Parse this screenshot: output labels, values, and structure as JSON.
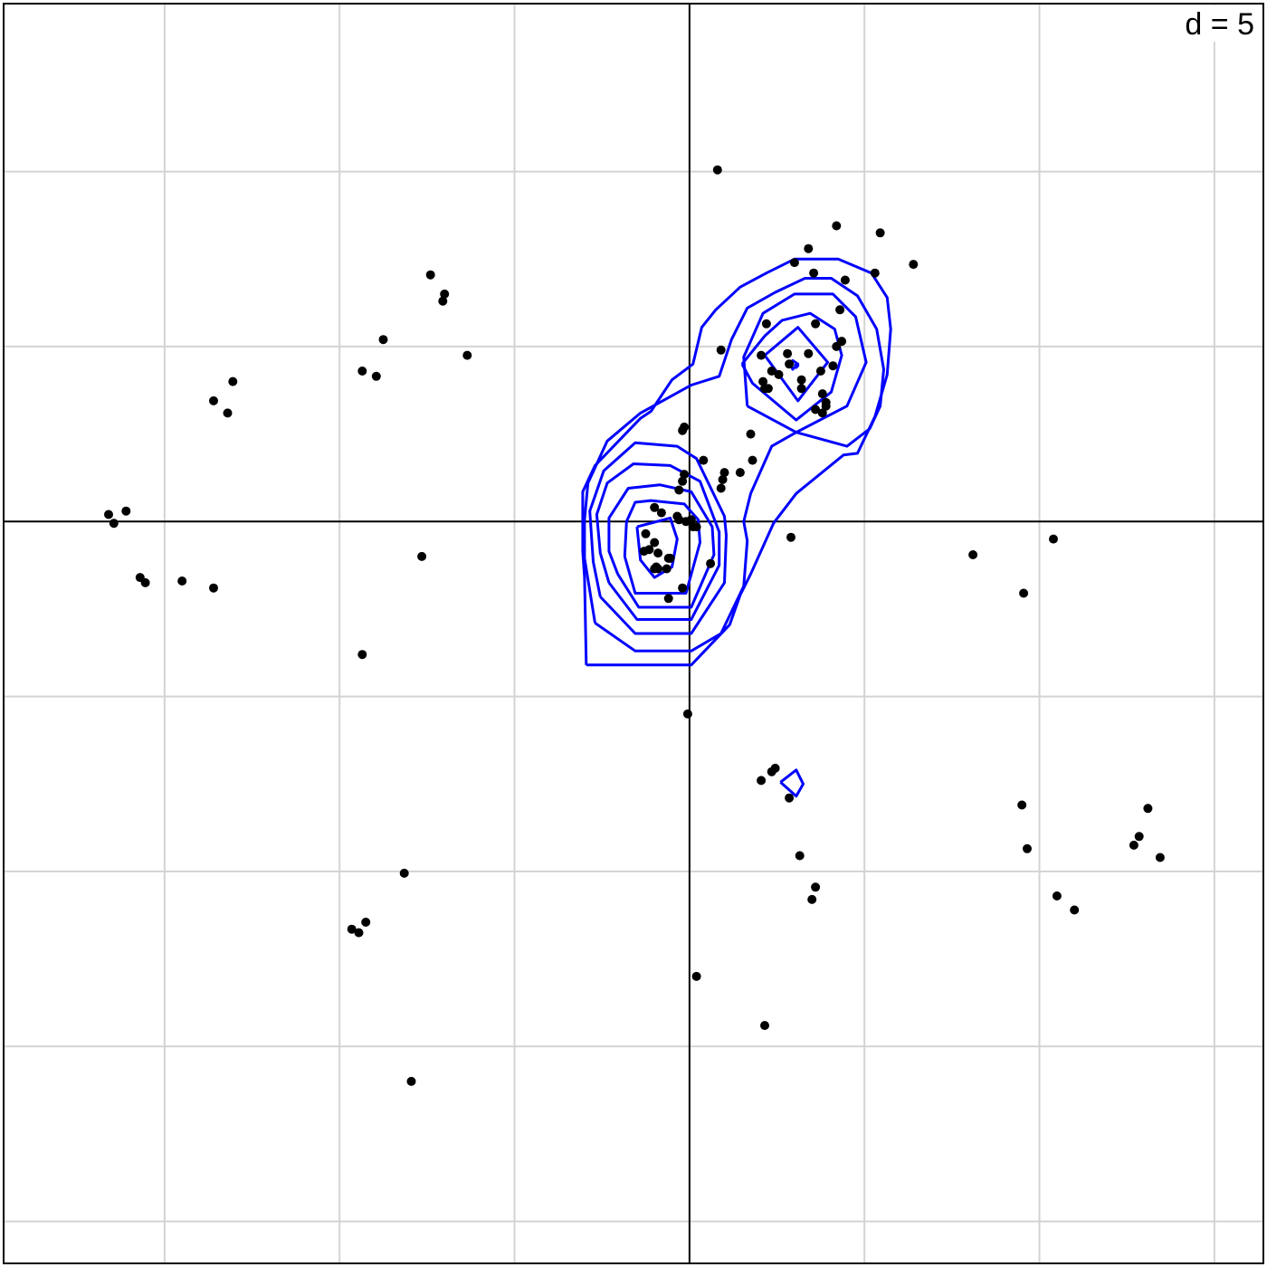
{
  "chart_data": {
    "type": "scatter",
    "title": "",
    "xlabel": "",
    "ylabel": "",
    "grid_label": "d = 5",
    "grid_step": 5,
    "xlim": [
      -19.6,
      16.4
    ],
    "ylim": [
      -21.2,
      14.8
    ],
    "grid": true,
    "axes_through_origin": true,
    "colors": {
      "points": "#000000",
      "contours": "#0000ff",
      "grid": "#d3d3d3",
      "axes": "#000000"
    },
    "points": [
      [
        0.8,
        10.05
      ],
      [
        4.2,
        8.45
      ],
      [
        5.45,
        8.25
      ],
      [
        5.3,
        7.1
      ],
      [
        6.4,
        7.35
      ],
      [
        3.4,
        7.8
      ],
      [
        3.55,
        7.1
      ],
      [
        3.0,
        7.4
      ],
      [
        4.45,
        6.9
      ],
      [
        4.3,
        6.05
      ],
      [
        3.6,
        5.65
      ],
      [
        2.85,
        4.5
      ],
      [
        2.2,
        5.65
      ],
      [
        2.05,
        4.75
      ],
      [
        2.8,
        4.8
      ],
      [
        4.1,
        4.45
      ],
      [
        3.4,
        4.8
      ],
      [
        2.35,
        4.3
      ],
      [
        2.55,
        4.2
      ],
      [
        3.2,
        4.05
      ],
      [
        2.1,
        4.0
      ],
      [
        3.75,
        4.3
      ],
      [
        4.2,
        5.0
      ],
      [
        4.35,
        5.15
      ],
      [
        3.2,
        3.8
      ],
      [
        2.25,
        3.8
      ],
      [
        2.15,
        3.8
      ],
      [
        0.9,
        4.9
      ],
      [
        3.8,
        3.65
      ],
      [
        3.9,
        3.4
      ],
      [
        3.6,
        3.2
      ],
      [
        3.9,
        3.3
      ],
      [
        3.8,
        3.1
      ],
      [
        1.75,
        2.5
      ],
      [
        1.8,
        1.75
      ],
      [
        -0.15,
        2.7
      ],
      [
        -0.2,
        2.6
      ],
      [
        0.4,
        1.75
      ],
      [
        1.45,
        1.4
      ],
      [
        1.0,
        1.4
      ],
      [
        0.95,
        1.2
      ],
      [
        0.9,
        0.95
      ],
      [
        -0.15,
        1.35
      ],
      [
        -0.2,
        1.15
      ],
      [
        -0.3,
        0.9
      ],
      [
        -1.0,
        0.4
      ],
      [
        -0.8,
        0.25
      ],
      [
        -0.35,
        0.15
      ],
      [
        -0.3,
        0.05
      ],
      [
        0.05,
        0.05
      ],
      [
        0.1,
        -0.15
      ],
      [
        -0.1,
        0.0
      ],
      [
        0.2,
        -0.15
      ],
      [
        -1.25,
        -0.35
      ],
      [
        -1.0,
        -0.6
      ],
      [
        -1.3,
        -0.85
      ],
      [
        -1.15,
        -0.8
      ],
      [
        -0.9,
        -0.9
      ],
      [
        -0.6,
        -1.05
      ],
      [
        -0.55,
        -1.05
      ],
      [
        -0.95,
        -1.3
      ],
      [
        -0.9,
        -1.35
      ],
      [
        -1.0,
        -1.35
      ],
      [
        -0.65,
        -1.35
      ],
      [
        -0.2,
        -1.9
      ],
      [
        -0.6,
        -2.2
      ],
      [
        0.6,
        -1.2
      ],
      [
        2.9,
        -0.45
      ],
      [
        8.1,
        -0.95
      ],
      [
        9.55,
        -2.05
      ],
      [
        10.4,
        -0.5
      ],
      [
        -0.05,
        -5.5
      ],
      [
        2.05,
        -7.4
      ],
      [
        2.35,
        -7.15
      ],
      [
        2.45,
        -7.05
      ],
      [
        2.85,
        -7.9
      ],
      [
        3.15,
        -9.55
      ],
      [
        3.6,
        -10.45
      ],
      [
        3.5,
        -10.8
      ],
      [
        0.2,
        -13.0
      ],
      [
        2.15,
        -14.4
      ],
      [
        9.5,
        -8.1
      ],
      [
        9.65,
        -9.35
      ],
      [
        10.5,
        -10.7
      ],
      [
        11.0,
        -11.1
      ],
      [
        13.1,
        -8.2
      ],
      [
        12.85,
        -9.0
      ],
      [
        12.7,
        -9.25
      ],
      [
        13.45,
        -9.6
      ],
      [
        -7.0,
        6.5
      ],
      [
        -8.75,
        5.2
      ],
      [
        -9.35,
        4.3
      ],
      [
        -8.95,
        4.15
      ],
      [
        -7.05,
        6.3
      ],
      [
        -7.4,
        7.05
      ],
      [
        -13.05,
        4.0
      ],
      [
        -16.1,
        0.3
      ],
      [
        -16.6,
        0.2
      ],
      [
        -16.45,
        -0.05
      ],
      [
        -13.6,
        3.45
      ],
      [
        -13.2,
        3.1
      ],
      [
        -15.7,
        -1.6
      ],
      [
        -15.55,
        -1.75
      ],
      [
        -14.5,
        -1.7
      ],
      [
        -13.6,
        -1.9
      ],
      [
        -9.35,
        -3.8
      ],
      [
        -7.65,
        -1.0
      ],
      [
        -6.35,
        4.75
      ],
      [
        -8.15,
        -10.05
      ],
      [
        -9.25,
        -11.45
      ],
      [
        -9.65,
        -11.65
      ],
      [
        -9.45,
        -11.75
      ],
      [
        -7.95,
        -16.0
      ]
    ],
    "contours": [
      [
        [
          -2.95,
          -4.1
        ],
        [
          -1.55,
          -4.1
        ],
        [
          0.05,
          -4.1
        ],
        [
          1.15,
          -2.95
        ],
        [
          1.45,
          -2.1
        ],
        [
          1.75,
          -1.5
        ],
        [
          2.4,
          -0.05
        ],
        [
          3.05,
          0.8
        ],
        [
          4.4,
          1.9
        ],
        [
          4.8,
          1.95
        ],
        [
          5.3,
          3.0
        ],
        [
          5.65,
          4.2
        ],
        [
          5.75,
          5.5
        ],
        [
          5.65,
          6.4
        ],
        [
          5.2,
          7.1
        ],
        [
          4.25,
          7.5
        ],
        [
          3.0,
          7.5
        ],
        [
          2.2,
          7.1
        ],
        [
          1.45,
          6.7
        ],
        [
          0.75,
          6.05
        ],
        [
          0.35,
          5.55
        ],
        [
          0.1,
          4.5
        ],
        [
          -0.5,
          4.05
        ],
        [
          -1.1,
          3.15
        ],
        [
          -1.4,
          2.95
        ],
        [
          -2.7,
          1.6
        ],
        [
          -3.05,
          0.85
        ],
        [
          -3.05,
          0.0
        ],
        [
          -3.05,
          -0.85
        ],
        [
          -3.0,
          -1.6
        ],
        [
          -2.95,
          -4.1
        ]
      ],
      [
        [
          -2.7,
          -2.9
        ],
        [
          -1.55,
          -3.7
        ],
        [
          0.05,
          -3.7
        ],
        [
          0.9,
          -3.2
        ],
        [
          1.55,
          -1.85
        ],
        [
          1.65,
          -0.55
        ],
        [
          1.55,
          0.0
        ],
        [
          1.75,
          0.8
        ],
        [
          2.35,
          2.15
        ],
        [
          3.05,
          2.55
        ],
        [
          4.5,
          2.15
        ],
        [
          5.15,
          2.65
        ],
        [
          5.45,
          3.3
        ],
        [
          5.55,
          4.35
        ],
        [
          5.35,
          5.5
        ],
        [
          4.8,
          6.45
        ],
        [
          4.05,
          6.95
        ],
        [
          3.3,
          6.95
        ],
        [
          2.45,
          6.55
        ],
        [
          1.65,
          6.1
        ],
        [
          1.2,
          5.2
        ],
        [
          0.85,
          4.15
        ],
        [
          0.05,
          3.9
        ],
        [
          -1.4,
          3.1
        ],
        [
          -2.35,
          2.3
        ],
        [
          -2.9,
          1.1
        ],
        [
          -3.0,
          0.05
        ],
        [
          -3.0,
          -1.05
        ],
        [
          -2.7,
          -2.9
        ]
      ],
      [
        [
          -2.55,
          -2.15
        ],
        [
          -1.55,
          -3.2
        ],
        [
          0.05,
          -3.2
        ],
        [
          1.0,
          -1.75
        ],
        [
          1.05,
          -0.4
        ],
        [
          1.0,
          0.15
        ],
        [
          0.2,
          1.8
        ],
        [
          -0.35,
          2.15
        ],
        [
          -1.55,
          2.25
        ],
        [
          -2.45,
          1.45
        ],
        [
          -2.85,
          0.3
        ],
        [
          -2.75,
          -1.15
        ],
        [
          -2.55,
          -2.15
        ]
      ],
      [
        [
          -2.3,
          -1.75
        ],
        [
          -1.5,
          -2.8
        ],
        [
          0.05,
          -2.8
        ],
        [
          0.85,
          -1.25
        ],
        [
          0.85,
          -0.3
        ],
        [
          0.3,
          1.15
        ],
        [
          -0.55,
          1.6
        ],
        [
          -1.6,
          1.65
        ],
        [
          -2.35,
          1.1
        ],
        [
          -2.65,
          0.2
        ],
        [
          -2.55,
          -0.9
        ],
        [
          -2.3,
          -1.75
        ]
      ],
      [
        [
          -2.05,
          -1.5
        ],
        [
          -1.45,
          -2.45
        ],
        [
          0.05,
          -2.45
        ],
        [
          0.7,
          -0.95
        ],
        [
          0.65,
          -0.15
        ],
        [
          0.05,
          0.85
        ],
        [
          -0.85,
          1.05
        ],
        [
          -1.75,
          0.95
        ],
        [
          -2.3,
          0.1
        ],
        [
          -2.3,
          -0.85
        ],
        [
          -2.05,
          -1.5
        ]
      ],
      [
        [
          -1.85,
          -1.0
        ],
        [
          -1.55,
          -2.05
        ],
        [
          -0.1,
          -2.05
        ],
        [
          0.3,
          -0.6
        ],
        [
          0.25,
          0.05
        ],
        [
          -0.15,
          0.5
        ],
        [
          -1.1,
          0.6
        ],
        [
          -1.55,
          0.55
        ],
        [
          -1.8,
          0.0
        ],
        [
          -1.85,
          -1.0
        ]
      ],
      [
        [
          -1.5,
          -0.15
        ],
        [
          -1.4,
          -1.1
        ],
        [
          -1.0,
          -1.6
        ],
        [
          -0.5,
          -1.3
        ],
        [
          -0.35,
          -0.5
        ],
        [
          -0.55,
          0.1
        ],
        [
          -1.5,
          -0.15
        ]
      ],
      [
        [
          1.65,
          3.3
        ],
        [
          3.05,
          2.55
        ],
        [
          4.5,
          3.3
        ],
        [
          5.05,
          4.55
        ],
        [
          4.75,
          5.85
        ],
        [
          4.1,
          6.5
        ],
        [
          3.0,
          6.5
        ],
        [
          2.1,
          5.95
        ],
        [
          1.55,
          4.7
        ],
        [
          1.65,
          3.3
        ]
      ],
      [
        [
          1.5,
          4.5
        ],
        [
          1.8,
          3.95
        ],
        [
          3.05,
          2.9
        ],
        [
          4.05,
          3.7
        ],
        [
          4.35,
          4.75
        ],
        [
          4.15,
          5.5
        ],
        [
          3.45,
          5.95
        ],
        [
          2.65,
          5.75
        ],
        [
          2.15,
          5.3
        ],
        [
          1.5,
          4.5
        ]
      ],
      [
        [
          2.15,
          4.75
        ],
        [
          3.1,
          3.45
        ],
        [
          3.95,
          4.55
        ],
        [
          3.1,
          5.55
        ],
        [
          2.15,
          4.75
        ]
      ],
      [
        [
          2.9,
          4.5
        ],
        [
          2.95,
          4.35
        ],
        [
          3.1,
          4.5
        ],
        [
          2.95,
          4.6
        ],
        [
          2.9,
          4.5
        ]
      ],
      [
        [
          3.0,
          4.45
        ],
        [
          3.05,
          4.4
        ],
        [
          3.1,
          4.45
        ],
        [
          3.05,
          4.5
        ],
        [
          3.0,
          4.45
        ]
      ],
      [
        [
          2.6,
          -7.45
        ],
        [
          3.05,
          -7.1
        ],
        [
          3.25,
          -7.5
        ],
        [
          3.05,
          -7.85
        ],
        [
          2.6,
          -7.45
        ]
      ]
    ]
  }
}
